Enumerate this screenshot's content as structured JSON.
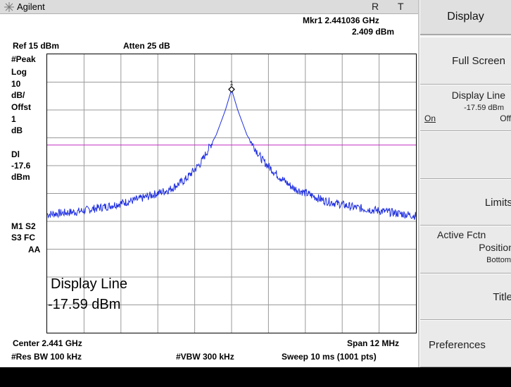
{
  "titlebar": {
    "brand": "Agilent",
    "indicator_r": "R",
    "indicator_t": "T"
  },
  "marker": {
    "label": "Mkr1 2.441036 GHz",
    "value": "2.409 dBm"
  },
  "header": {
    "ref_level": "Ref 15 dBm",
    "atten": "Atten 25 dB"
  },
  "left_annotations": {
    "detector": "#Peak",
    "scale_type": "Log",
    "scale_val": "10",
    "scale_unit": "dB/",
    "offset_label": "Offst",
    "offset_val": "1",
    "offset_unit": "dB",
    "dl_label": "Dl",
    "dl_val": "-17.6",
    "dl_unit": "dBm",
    "m1s2": "M1  S2",
    "s3fc": "S3  FC",
    "aa": "AA"
  },
  "overlay": {
    "line1": "Display Line",
    "line2": "-17.59 dBm"
  },
  "marker_number": "1",
  "footer": {
    "center": "Center 2.441 GHz",
    "span": "Span 12 MHz",
    "res_bw": "#Res BW 100 kHz",
    "vbw": "#VBW 300 kHz",
    "sweep": "Sweep 10 ms (1001 pts)"
  },
  "softkeys": {
    "title": "Display",
    "full_screen": "Full Screen",
    "display_line": "Display Line",
    "display_line_value": "-17.59 dBm",
    "display_line_on": "On",
    "display_line_off": "Off",
    "limits": "Limits",
    "active_fctn_line1": "Active Fctn",
    "active_fctn_line2": "Position",
    "active_fctn_value": "Bottom",
    "title_key": "Title",
    "preferences": "Preferences"
  },
  "chart_data": {
    "type": "line",
    "x_unit": "GHz",
    "x_center": 2.441,
    "x_span_mhz": 12,
    "y_ref_dbm": 15,
    "y_scale_db_per_div": 10,
    "divisions": 10,
    "display_line_dbm": -17.59,
    "series": [
      {
        "points": [
          [
            2.435,
            -42.5
          ],
          [
            2.436,
            -41.5
          ],
          [
            2.437,
            -39.5
          ],
          [
            2.438,
            -37
          ],
          [
            2.439,
            -33.5
          ],
          [
            2.4395,
            -30
          ],
          [
            2.44,
            -24
          ],
          [
            2.4405,
            -14
          ],
          [
            2.4408,
            -5
          ],
          [
            2.441,
            2.4
          ],
          [
            2.4412,
            -5
          ],
          [
            2.4415,
            -14
          ],
          [
            2.442,
            -23
          ],
          [
            2.4425,
            -28.5
          ],
          [
            2.443,
            -33
          ],
          [
            2.444,
            -37.5
          ],
          [
            2.445,
            -40
          ],
          [
            2.446,
            -41.5
          ],
          [
            2.447,
            -43
          ]
        ]
      }
    ],
    "colors": {
      "trace": "#1f2fe0",
      "display_line": "#c030c0",
      "grid": "#9a9a9a"
    }
  }
}
